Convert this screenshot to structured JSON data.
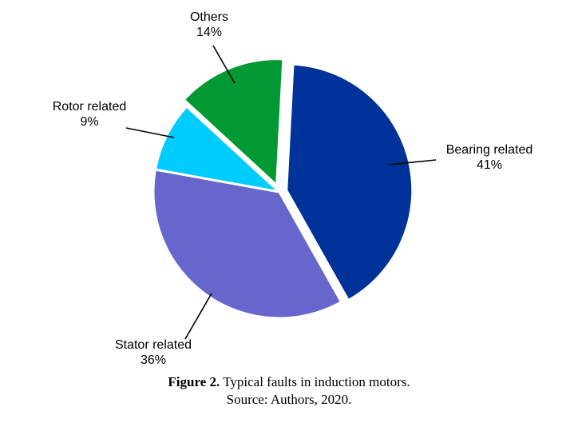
{
  "chart_data": {
    "type": "pie",
    "slices": [
      {
        "name": "Bearing related",
        "value": 41,
        "value_label": "41%",
        "color": "#003399",
        "exploded": true
      },
      {
        "name": "Stator related",
        "value": 36,
        "value_label": "36%",
        "color": "#6666cc",
        "exploded": false
      },
      {
        "name": "Rotor related",
        "value": 9,
        "value_label": "9%",
        "color": "#00ccff",
        "exploded": false
      },
      {
        "name": "Others",
        "value": 14,
        "value_label": "14%",
        "color": "#009933",
        "exploded": true
      }
    ],
    "legend": "none",
    "labels": "outside with leader lines"
  },
  "caption": {
    "figure_number": "Figure 2.",
    "title_text": " Typical faults in induction motors.",
    "source": "Source: Authors, 2020."
  }
}
